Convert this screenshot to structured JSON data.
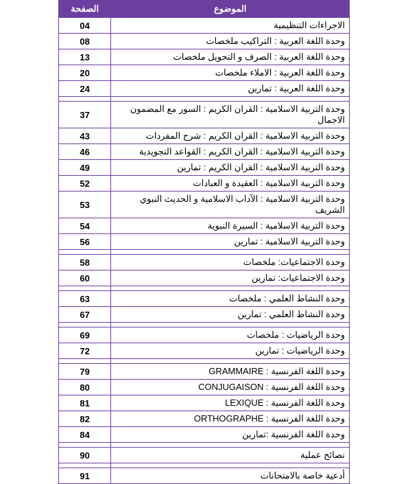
{
  "header": {
    "topic": "الموضوع",
    "page": "الصفحة"
  },
  "rows": [
    {
      "topic": "الاجراءات التنظيمية",
      "page": "04"
    },
    {
      "topic": "وحدة اللغة العربية : التراكيب     ملخصات",
      "page": "08"
    },
    {
      "topic": "وحدة اللغة العربية : الصرف و التحويل     ملخصات",
      "page": "13"
    },
    {
      "topic": "وحدة اللغة العربية : الاملاء     ملخصات",
      "page": "20"
    },
    {
      "topic": "وحدة اللغة العربية : تمارين",
      "page": "24"
    },
    {
      "topic": "وحدة التربية الاسلامية : القران الكريم : السور مع المضمون الاجمال",
      "page": "37"
    },
    {
      "topic": "وحدة التربية الاسلامية : القران الكريم : شرح المفردات",
      "page": "43"
    },
    {
      "topic": "وحدة التربية الاسلامية : القران الكريم : القواعد التجويدية",
      "page": "46"
    },
    {
      "topic": "وحدة التربية الاسلامية : القران الكريم : تمارين",
      "page": "49"
    },
    {
      "topic": "وحدة التربية الاسلامية : العقيدة و العبادات",
      "page": "52"
    },
    {
      "topic": "وحدة التربية الاسلامية : الآداب الاسلامية و الحديث النبوي الشريف",
      "page": "53"
    },
    {
      "topic": "وحدة التربية الاسلامية : السيرة النبوية",
      "page": "54"
    },
    {
      "topic": "وحدة التربية الاسلامية : تمارين",
      "page": "56"
    },
    {
      "topic": "وحدة الاجتماعيات: ملخصات",
      "page": "58"
    },
    {
      "topic": "وحدة الاجتماعيات: تمارين",
      "page": "60"
    },
    {
      "topic": "وحدة النشاط العلمي : ملخصات",
      "page": "63"
    },
    {
      "topic": "وحدة النشاط العلمي : تمارين",
      "page": "67"
    },
    {
      "topic": "وحدة الرياضيات : ملخصات",
      "page": "69"
    },
    {
      "topic": "وحدة الرياضيات : تمارين",
      "page": "72"
    },
    {
      "topic": "وحدة اللغة الفرنسية : GRAMMAIRE",
      "page": "79"
    },
    {
      "topic": "وحدة اللغة الفرنسية : CONJUGAISON",
      "page": "80"
    },
    {
      "topic": "وحدة اللغة الفرنسية : LEXIQUE",
      "page": "81"
    },
    {
      "topic": "وحدة اللغة الفرنسية : ORTHOGRAPHE",
      "page": "82"
    },
    {
      "topic": "وحدة اللغة الفرنسية :تمارين",
      "page": "84"
    },
    {
      "topic": "نصائح عملية",
      "page": "90"
    },
    {
      "topic": "أدعية خاصة بالامتحانات",
      "page": "91"
    }
  ],
  "gapsAfter": [
    4,
    12,
    14,
    16,
    18,
    23,
    24
  ],
  "colors": {
    "purple": "#6b3fa0",
    "text": "#000000",
    "bg": "#ffffff"
  }
}
